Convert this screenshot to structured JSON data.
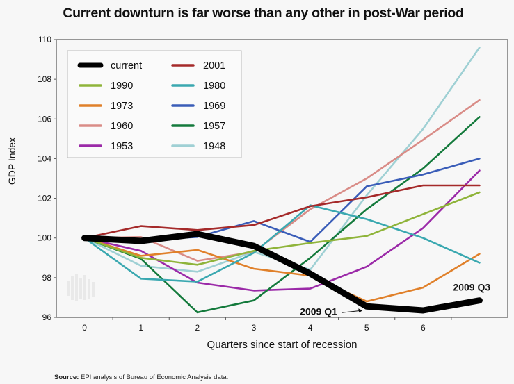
{
  "chart_data": {
    "type": "line",
    "title": "Current downturn is far worse than any other in post-War period",
    "xlabel": "Quarters since start of recession",
    "ylabel": "GDP Index",
    "x": [
      0,
      1,
      2,
      3,
      4,
      5,
      6,
      7
    ],
    "x_tick_labels": [
      "0",
      "1",
      "2",
      "3",
      "4",
      "5",
      "6"
    ],
    "y_ticks": [
      96,
      98,
      100,
      102,
      104,
      106,
      108,
      110
    ],
    "ylim": [
      96,
      110
    ],
    "xlim": [
      -0.5,
      7.5
    ],
    "grid": false,
    "legend_placement": "top-left",
    "series": [
      {
        "name": "current",
        "color": "#000000",
        "values": [
          100.0,
          99.85,
          100.2,
          99.6,
          98.2,
          96.55,
          96.35,
          96.85
        ]
      },
      {
        "name": "2001",
        "color": "#a52a2a",
        "values": [
          100.0,
          100.6,
          100.4,
          100.65,
          101.6,
          102.05,
          102.65,
          102.65
        ]
      },
      {
        "name": "1990",
        "color": "#8fb43a",
        "values": [
          100.0,
          99.0,
          98.65,
          99.35,
          99.75,
          100.1,
          101.2,
          102.3
        ]
      },
      {
        "name": "1980",
        "color": "#3aa8b0",
        "values": [
          100.0,
          97.95,
          97.8,
          99.25,
          101.65,
          100.95,
          100.0,
          98.75
        ]
      },
      {
        "name": "1973",
        "color": "#e0802a",
        "values": [
          100.0,
          99.1,
          99.4,
          98.45,
          98.1,
          96.8,
          97.5,
          99.2
        ]
      },
      {
        "name": "1969",
        "color": "#3a5db8",
        "values": [
          100.0,
          99.9,
          100.05,
          100.85,
          99.8,
          102.6,
          103.2,
          104.0
        ]
      },
      {
        "name": "1960",
        "color": "#d98c87",
        "values": [
          100.0,
          100.05,
          98.85,
          99.3,
          101.45,
          103.0,
          104.95,
          106.95
        ]
      },
      {
        "name": "1957",
        "color": "#147a3c",
        "values": [
          100.0,
          98.95,
          96.25,
          96.85,
          99.0,
          101.45,
          103.5,
          106.1
        ]
      },
      {
        "name": "1953",
        "color": "#9b2aa8",
        "values": [
          100.0,
          99.35,
          97.75,
          97.35,
          97.45,
          98.55,
          100.5,
          103.4
        ]
      },
      {
        "name": "1948",
        "color": "#9fd0d4",
        "values": [
          100.0,
          98.6,
          98.3,
          99.3,
          98.4,
          102.15,
          105.5,
          109.6
        ]
      }
    ],
    "legend": {
      "columns": [
        [
          "current",
          "1990",
          "1973",
          "1960",
          "1953"
        ],
        [
          "2001",
          "1980",
          "1969",
          "1957",
          "1948"
        ]
      ]
    },
    "annotations": [
      {
        "text": "2009 Q1",
        "x": 5,
        "y": 96.55,
        "arrow": true
      },
      {
        "text": "2009 Q3",
        "x": 7,
        "y": 96.85,
        "arrow": false
      }
    ],
    "source_label": "Source:",
    "source_text": " EPI analysis of Bureau of Economic Analysis data."
  }
}
